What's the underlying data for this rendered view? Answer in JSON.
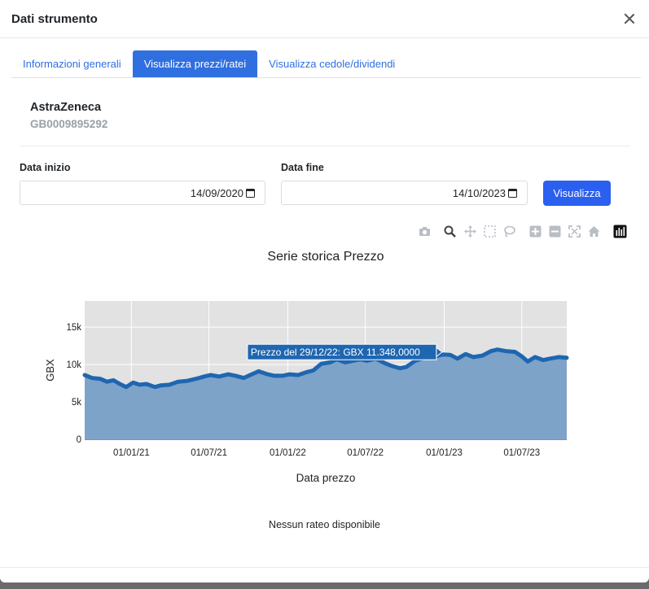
{
  "modal": {
    "title": "Dati strumento"
  },
  "tabs": [
    {
      "label": "Informazioni generali",
      "active": false
    },
    {
      "label": "Visualizza prezzi/ratei",
      "active": true
    },
    {
      "label": "Visualizza cedole/dividendi",
      "active": false
    }
  ],
  "instrument": {
    "name": "AstraZeneca",
    "isin": "GB0009895292"
  },
  "filters": {
    "start_label": "Data inizio",
    "start_value": "14/09/2020",
    "end_label": "Data fine",
    "end_value": "14/10/2023",
    "submit_label": "Visualizza"
  },
  "modebar": [
    "camera-icon",
    "zoom-icon",
    "pan-icon",
    "box-select-icon",
    "lasso-select-icon",
    "zoom-in-icon",
    "zoom-out-icon",
    "autoscale-icon",
    "reset-axes-icon",
    "plotly-logo-icon"
  ],
  "chart_data": {
    "type": "area",
    "title": "Serie storica Prezzo",
    "xlabel": "Data prezzo",
    "ylabel": "GBX",
    "x_ticks": [
      "01/01/21",
      "01/07/21",
      "01/01/22",
      "01/07/22",
      "01/01/23",
      "01/07/23"
    ],
    "y_ticks": [
      "0",
      "5k",
      "10k",
      "15k"
    ],
    "ylim": [
      0,
      18500
    ],
    "xlim": [
      "2020-09-14",
      "2023-10-14"
    ],
    "grid": true,
    "series": [
      {
        "color": "#1f66b0",
        "fill": "#7da3c9",
        "points": [
          [
            "2020-09-14",
            8600
          ],
          [
            "2020-10-01",
            8200
          ],
          [
            "2020-10-20",
            8100
          ],
          [
            "2020-11-05",
            7700
          ],
          [
            "2020-11-20",
            7900
          ],
          [
            "2020-12-05",
            7400
          ],
          [
            "2020-12-20",
            7000
          ],
          [
            "2021-01-05",
            7600
          ],
          [
            "2021-01-20",
            7300
          ],
          [
            "2021-02-05",
            7400
          ],
          [
            "2021-02-25",
            7000
          ],
          [
            "2021-03-10",
            7200
          ],
          [
            "2021-03-31",
            7300
          ],
          [
            "2021-04-20",
            7700
          ],
          [
            "2021-05-10",
            7800
          ],
          [
            "2021-06-01",
            8100
          ],
          [
            "2021-06-20",
            8400
          ],
          [
            "2021-07-05",
            8600
          ],
          [
            "2021-07-25",
            8400
          ],
          [
            "2021-08-15",
            8700
          ],
          [
            "2021-09-01",
            8500
          ],
          [
            "2021-09-20",
            8200
          ],
          [
            "2021-10-05",
            8600
          ],
          [
            "2021-10-25",
            9100
          ],
          [
            "2021-11-15",
            8700
          ],
          [
            "2021-12-01",
            8500
          ],
          [
            "2021-12-20",
            8500
          ],
          [
            "2022-01-05",
            8700
          ],
          [
            "2022-01-25",
            8600
          ],
          [
            "2022-02-15",
            9000
          ],
          [
            "2022-03-01",
            9200
          ],
          [
            "2022-03-20",
            10100
          ],
          [
            "2022-04-10",
            10300
          ],
          [
            "2022-04-25",
            10700
          ],
          [
            "2022-05-15",
            10300
          ],
          [
            "2022-06-01",
            10500
          ],
          [
            "2022-06-20",
            10700
          ],
          [
            "2022-07-05",
            10500
          ],
          [
            "2022-07-25",
            10800
          ],
          [
            "2022-08-15",
            10200
          ],
          [
            "2022-09-01",
            9800
          ],
          [
            "2022-09-20",
            9500
          ],
          [
            "2022-10-05",
            9700
          ],
          [
            "2022-10-25",
            10500
          ],
          [
            "2022-11-15",
            10900
          ],
          [
            "2022-12-05",
            11000
          ],
          [
            "2022-12-29",
            11348
          ],
          [
            "2023-01-15",
            11300
          ],
          [
            "2023-02-01",
            10800
          ],
          [
            "2023-02-20",
            11400
          ],
          [
            "2023-03-10",
            11000
          ],
          [
            "2023-03-31",
            11200
          ],
          [
            "2023-04-20",
            11800
          ],
          [
            "2023-05-05",
            12000
          ],
          [
            "2023-05-25",
            11800
          ],
          [
            "2023-06-15",
            11700
          ],
          [
            "2023-07-01",
            11100
          ],
          [
            "2023-07-15",
            10400
          ],
          [
            "2023-08-01",
            11000
          ],
          [
            "2023-08-20",
            10600
          ],
          [
            "2023-09-05",
            10800
          ],
          [
            "2023-09-25",
            11000
          ],
          [
            "2023-10-14",
            10900
          ]
        ]
      }
    ],
    "hover": {
      "label": "Prezzo del 29/12/22: GBX 11.348,0000",
      "date": "2022-12-29",
      "value": 11348
    }
  },
  "rateo": {
    "message": "Nessun rateo disponibile"
  }
}
